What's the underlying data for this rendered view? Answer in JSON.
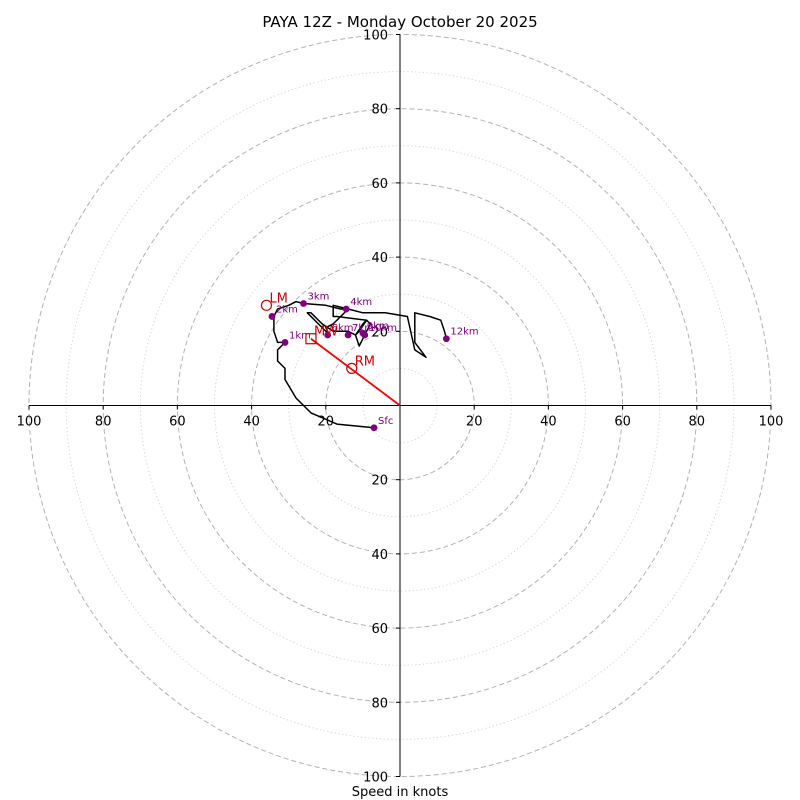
{
  "chart_data": {
    "type": "hodograph",
    "title": "PAYA 12Z - Monday October 20 2025",
    "xlabel": "Speed in knots",
    "range": [
      -100,
      100
    ],
    "rings_major": [
      20,
      40,
      60,
      80,
      100
    ],
    "rings_minor": [
      10,
      30,
      50,
      70,
      90
    ],
    "x_tick_labels": [
      "100",
      "80",
      "60",
      "40",
      "20",
      "20",
      "40",
      "60",
      "80",
      "100"
    ],
    "x_tick_values": [
      -100,
      -80,
      -60,
      -40,
      -20,
      20,
      40,
      60,
      80,
      100
    ],
    "y_tick_labels": [
      "100",
      "80",
      "60",
      "40",
      "20",
      "20",
      "40",
      "60",
      "80",
      "100"
    ],
    "y_tick_values": [
      100,
      80,
      60,
      40,
      20,
      -20,
      -40,
      -60,
      -80,
      -100
    ],
    "trace": [
      [
        -7,
        -6
      ],
      [
        -17,
        -5
      ],
      [
        -24,
        -2
      ],
      [
        -28,
        2
      ],
      [
        -31,
        7
      ],
      [
        -31,
        10
      ],
      [
        -33,
        12
      ],
      [
        -33,
        15
      ],
      [
        -31,
        17
      ],
      [
        -33,
        17
      ],
      [
        -34,
        20
      ],
      [
        -34,
        24
      ],
      [
        -33,
        26
      ],
      [
        -30,
        27
      ],
      [
        -28,
        28
      ],
      [
        -26,
        27.5
      ],
      [
        -20,
        27
      ],
      [
        -16,
        26
      ],
      [
        -14,
        26
      ],
      [
        -15,
        25
      ],
      [
        -18,
        22
      ],
      [
        -20,
        21
      ],
      [
        -19,
        19
      ],
      [
        -21,
        21
      ],
      [
        -25,
        25
      ],
      [
        -24,
        25
      ],
      [
        -21,
        22
      ],
      [
        -18,
        20
      ],
      [
        -14,
        20
      ],
      [
        -12,
        19
      ],
      [
        -11,
        16
      ],
      [
        -10,
        18
      ],
      [
        -8,
        22
      ],
      [
        -9,
        23
      ],
      [
        -11,
        20
      ],
      [
        -12,
        19
      ],
      [
        -10,
        22
      ],
      [
        -9,
        23
      ],
      [
        -17,
        24
      ],
      [
        -18,
        24
      ],
      [
        -18,
        27
      ],
      [
        -14,
        26
      ],
      [
        -10,
        25
      ],
      [
        -4,
        25
      ],
      [
        2,
        24
      ],
      [
        4,
        15
      ],
      [
        7,
        13
      ],
      [
        4,
        17
      ],
      [
        4,
        25
      ],
      [
        8,
        24
      ],
      [
        11,
        23
      ],
      [
        12,
        20
      ],
      [
        12.5,
        18
      ]
    ],
    "height_markers": [
      {
        "label": "Sfc",
        "u": -7,
        "v": -6
      },
      {
        "label": "1km",
        "u": -31,
        "v": 17
      },
      {
        "label": "2km",
        "u": -34.5,
        "v": 24
      },
      {
        "label": "3km",
        "u": -26,
        "v": 27.5
      },
      {
        "label": "4km",
        "u": -14.5,
        "v": 26
      },
      {
        "label": "6km",
        "u": -19.5,
        "v": 19
      },
      {
        "label": "7km",
        "u": -14,
        "v": 19
      },
      {
        "label": "9km",
        "u": -10,
        "v": 19.5
      },
      {
        "label": "10km",
        "u": -9.5,
        "v": 19
      },
      {
        "label": "12km",
        "u": 12.5,
        "v": 18
      }
    ],
    "storm_motions": [
      {
        "label": "LM",
        "u": -36,
        "v": 27
      },
      {
        "label": "MW",
        "u": -24,
        "v": 18
      },
      {
        "label": "RM",
        "u": -13,
        "v": 10
      }
    ],
    "bunkers_vector": {
      "from": [
        0,
        0
      ],
      "to": [
        -24,
        18
      ]
    },
    "colors": {
      "trace": "#000000",
      "marker": "#800080",
      "storm_motion": "#cc0000",
      "vector": "#ff0000",
      "grid": "#b3b3b3"
    }
  }
}
